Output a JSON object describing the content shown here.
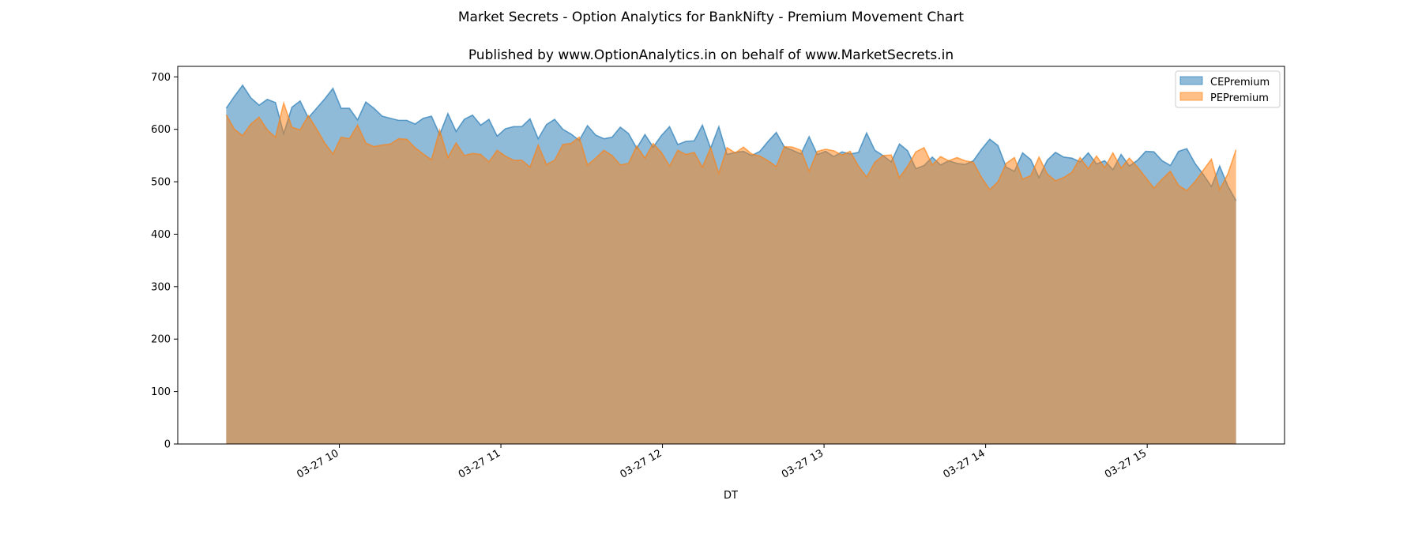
{
  "chart_data": {
    "type": "area",
    "suptitle": "Market Secrets - Option Analytics for BankNifty - Premium Movement Chart",
    "title": "Published by www.OptionAnalytics.in on behalf of www.MarketSecrets.in",
    "xlabel": "DT",
    "ylabel": "",
    "ylim": [
      0,
      720
    ],
    "yticks": [
      0,
      100,
      200,
      300,
      400,
      500,
      600,
      700
    ],
    "xticks": [
      {
        "value": 10,
        "label": "03-27 10"
      },
      {
        "value": 11,
        "label": "03-27 11"
      },
      {
        "value": 12,
        "label": "03-27 12"
      },
      {
        "value": 13,
        "label": "03-27 13"
      },
      {
        "value": 14,
        "label": "03-27 14"
      },
      {
        "value": 15,
        "label": "03-27 15"
      }
    ],
    "xlim": [
      9.0,
      15.85
    ],
    "x_start": 9.3,
    "x_end": 15.55,
    "grid": false,
    "legend_position": "top-right",
    "series": [
      {
        "name": "CEPremium",
        "color": "#1f77b4",
        "values": [
          640,
          663,
          684,
          660,
          646,
          657,
          651,
          592,
          642,
          654,
          622,
          640,
          658,
          678,
          640,
          640,
          618,
          652,
          640,
          625,
          621,
          617,
          617,
          610,
          621,
          625,
          590,
          630,
          596,
          619,
          627,
          608,
          619,
          587,
          601,
          605,
          605,
          620,
          582,
          609,
          619,
          600,
          591,
          579,
          607,
          589,
          582,
          585,
          604,
          592,
          564,
          590,
          566,
          588,
          605,
          571,
          577,
          578,
          608,
          564,
          605,
          552,
          556,
          558,
          550,
          558,
          577,
          594,
          566,
          560,
          553,
          586,
          552,
          558,
          548,
          557,
          553,
          556,
          593,
          560,
          550,
          538,
          572,
          559,
          525,
          531,
          547,
          532,
          540,
          535,
          533,
          540,
          562,
          581,
          569,
          528,
          520,
          555,
          542,
          508,
          541,
          556,
          547,
          545,
          538,
          555,
          534,
          540,
          523,
          552,
          530,
          541,
          558,
          557,
          540,
          531,
          558,
          563,
          535,
          514,
          491,
          530,
          492,
          464
        ]
      },
      {
        "name": "PEPremium",
        "color": "#ff7f0e",
        "values": [
          628,
          600,
          588,
          610,
          623,
          599,
          585,
          650,
          604,
          599,
          626,
          601,
          574,
          553,
          585,
          582,
          608,
          574,
          567,
          570,
          572,
          582,
          581,
          565,
          553,
          542,
          598,
          546,
          574,
          550,
          554,
          552,
          538,
          560,
          549,
          541,
          541,
          528,
          570,
          533,
          541,
          571,
          573,
          585,
          532,
          545,
          560,
          550,
          532,
          535,
          568,
          545,
          573,
          556,
          530,
          560,
          552,
          556,
          528,
          565,
          516,
          565,
          555,
          566,
          553,
          549,
          540,
          529,
          567,
          566,
          560,
          520,
          558,
          562,
          559,
          551,
          558,
          530,
          509,
          537,
          550,
          551,
          508,
          530,
          557,
          565,
          532,
          548,
          540,
          546,
          540,
          537,
          508,
          485,
          500,
          535,
          546,
          505,
          512,
          547,
          515,
          502,
          508,
          518,
          546,
          525,
          549,
          527,
          555,
          526,
          545,
          528,
          508,
          488,
          505,
          520,
          493,
          483,
          500,
          522,
          543,
          485,
          515,
          561
        ]
      }
    ]
  }
}
